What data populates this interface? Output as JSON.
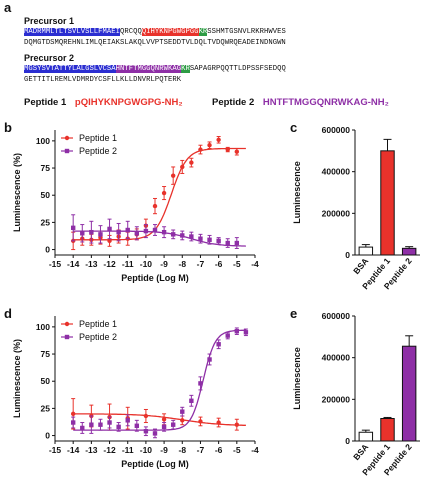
{
  "panel_labels": {
    "a": "a",
    "b": "b",
    "c": "c",
    "d": "d",
    "e": "e"
  },
  "precursor1": {
    "title": "Precursor 1",
    "line1": {
      "blue": "MADRMMLTLTSVLVSLLFMAEI",
      "plain1": "QRCQQ",
      "red": "QIHYKNPGWGPGG",
      "green": "KR",
      "plain2": "SSHMTGSNVLRKRHWVES"
    },
    "line2": "DQMGTDSMQREHNLIMLQEIAKSLAKQLVVPTSEDDTVLDQLTVDQWRQEADEINDNGWN"
  },
  "precursor2": {
    "title": "Precursor 2",
    "line1": {
      "blue": "MGSYSVTATTYLALGSLVCSA",
      "purple": "HNTFTMGGQNRWKAG",
      "green": "KR",
      "plain": "SAPAGRPQQTTLDPSSFSEDQQ"
    },
    "line2": "GETTITLREMLVDMRDYCSFLLKLLDNVRLPQTERK"
  },
  "legend": {
    "p1_label": "Peptide 1",
    "p1_seq": "pQIHYKNPGWGPG-NH₂",
    "p2_label": "Peptide 2",
    "p2_seq": "HNTFTMGGQNRWKAG-NH₂"
  },
  "colors": {
    "red": "#e8322b",
    "purple": "#8e2fa6",
    "blue": "#2b2ed1",
    "green": "#2e9c45"
  },
  "chart_data": [
    {
      "id": "b",
      "type": "line",
      "xlabel": "Peptide (Log M)",
      "ylabel": "Luminescence (%)",
      "xlim": [
        -15,
        -4
      ],
      "ylim": [
        -5,
        110
      ],
      "xticks": [
        -15,
        -14,
        -13,
        -12,
        -11,
        -10,
        -9,
        -8,
        -7,
        -6,
        -5,
        -4
      ],
      "yticks": [
        0,
        25,
        50,
        75,
        100
      ],
      "legend_position": "top-left",
      "series": [
        {
          "name": "Peptide 1",
          "color": "#e8322b",
          "marker": "circle",
          "x": [
            -14,
            -13.5,
            -13,
            -12.5,
            -12,
            -11.5,
            -11,
            -10.5,
            -10,
            -9.5,
            -9,
            -8.5,
            -8,
            -7.5,
            -7,
            -6.5,
            -6,
            -5.5,
            -5
          ],
          "y": [
            8,
            10,
            9,
            11,
            8,
            12,
            10,
            14,
            22,
            40,
            52,
            68,
            76,
            80,
            92,
            96,
            101,
            92,
            90
          ],
          "err": [
            8,
            6,
            5,
            6,
            5,
            6,
            6,
            5,
            6,
            7,
            6,
            8,
            6,
            4,
            4,
            3,
            3,
            2,
            3
          ],
          "fit": {
            "bottom": 9,
            "top": 93,
            "logEC50": -8.6,
            "hill": 1.0
          }
        },
        {
          "name": "Peptide 2",
          "color": "#8e2fa6",
          "marker": "square",
          "x": [
            -14,
            -13.5,
            -13,
            -12.5,
            -12,
            -11.5,
            -11,
            -10.5,
            -10,
            -9.5,
            -9,
            -8.5,
            -8,
            -7.5,
            -7,
            -6.5,
            -6,
            -5.5,
            -5
          ],
          "y": [
            20,
            15,
            16,
            14,
            19,
            16,
            18,
            15,
            17,
            18,
            16,
            14,
            13,
            12,
            10,
            9,
            8,
            6,
            6
          ],
          "err": [
            12,
            8,
            10,
            8,
            9,
            8,
            8,
            6,
            6,
            5,
            5,
            4,
            4,
            4,
            4,
            4,
            3,
            4,
            5
          ],
          "fit": {
            "bottom": 3,
            "top": 17,
            "logEC50": -7.5,
            "hill": -0.6
          }
        }
      ]
    },
    {
      "id": "c",
      "type": "bar",
      "ylabel": "Luminescence",
      "categories": [
        "BSA",
        "Peptide 1",
        "Peptide 2"
      ],
      "values": [
        38000,
        500000,
        32000
      ],
      "errors": [
        12000,
        55000,
        8000
      ],
      "colors": [
        "#ffffff",
        "#e8322b",
        "#8e2fa6"
      ],
      "ylim": [
        0,
        600000
      ],
      "yticks": [
        0,
        200000,
        400000,
        600000
      ]
    },
    {
      "id": "d",
      "type": "line",
      "xlabel": "Peptide (Log M)",
      "ylabel": "Luminescence (%)",
      "xlim": [
        -15,
        -4
      ],
      "ylim": [
        -5,
        110
      ],
      "xticks": [
        -15,
        -14,
        -13,
        -12,
        -11,
        -10,
        -9,
        -8,
        -7,
        -6,
        -5,
        -4
      ],
      "yticks": [
        0,
        25,
        50,
        75,
        100
      ],
      "legend_position": "top-left",
      "series": [
        {
          "name": "Peptide 1",
          "color": "#e8322b",
          "marker": "circle",
          "x": [
            -14,
            -13,
            -12,
            -11,
            -10,
            -9,
            -8,
            -7,
            -6,
            -5
          ],
          "y": [
            20,
            18,
            17,
            16,
            18,
            15,
            14,
            13,
            12,
            10
          ],
          "err": [
            14,
            10,
            12,
            10,
            6,
            5,
            4,
            4,
            4,
            5
          ],
          "fit": {
            "bottom": 9,
            "top": 20,
            "logEC50": -8.0,
            "hill": -0.4
          }
        },
        {
          "name": "Peptide 2",
          "color": "#8e2fa6",
          "marker": "square",
          "x": [
            -14,
            -13.5,
            -13,
            -12.5,
            -12,
            -11.5,
            -11,
            -10.5,
            -10,
            -9.5,
            -9,
            -8.5,
            -8,
            -7.5,
            -7,
            -6.5,
            -6,
            -5.5,
            -5,
            -4.5
          ],
          "y": [
            12,
            7,
            10,
            10,
            12,
            8,
            14,
            9,
            4,
            2,
            8,
            10,
            22,
            32,
            48,
            70,
            84,
            92,
            96,
            95
          ],
          "err": [
            5,
            5,
            8,
            5,
            5,
            4,
            5,
            5,
            4,
            4,
            4,
            4,
            4,
            5,
            6,
            5,
            4,
            3,
            3,
            3
          ],
          "fit": {
            "bottom": 5,
            "top": 97,
            "logEC50": -6.85,
            "hill": 1.3
          }
        }
      ]
    },
    {
      "id": "e",
      "type": "bar",
      "ylabel": "Luminescence",
      "categories": [
        "BSA",
        "Peptide 1",
        "Peptide 2"
      ],
      "values": [
        42000,
        108000,
        455000
      ],
      "errors": [
        10000,
        5000,
        50000
      ],
      "colors": [
        "#ffffff",
        "#e8322b",
        "#8e2fa6"
      ],
      "ylim": [
        0,
        600000
      ],
      "yticks": [
        0,
        200000,
        400000,
        600000
      ]
    }
  ]
}
